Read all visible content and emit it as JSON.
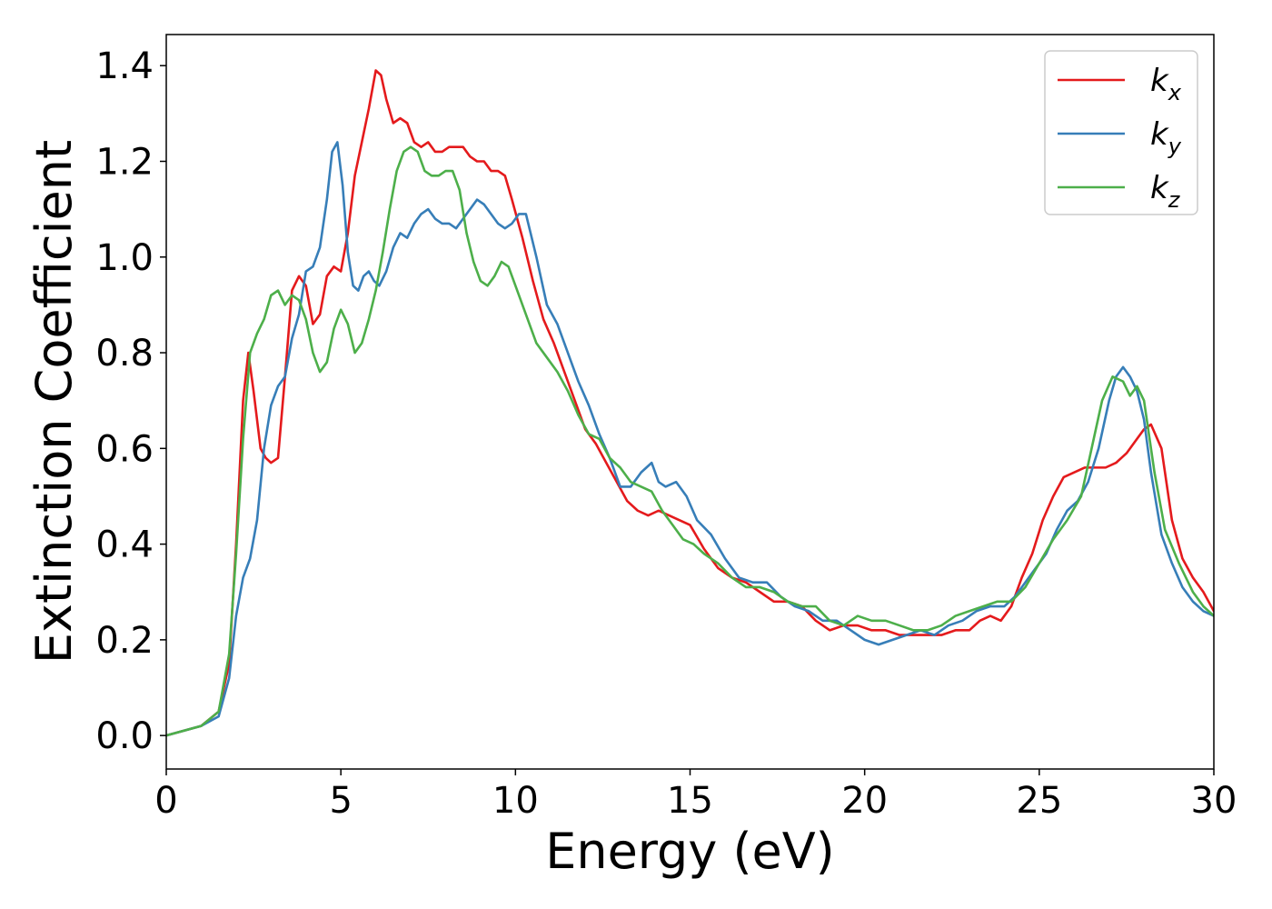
{
  "chart_data": {
    "type": "line",
    "title": "",
    "xlabel": "Energy (eV)",
    "ylabel": "Extinction Coefficient",
    "xlim": [
      0,
      30
    ],
    "ylim": [
      -0.07,
      1.465
    ],
    "xticks": [
      0,
      5,
      10,
      15,
      20,
      25,
      30
    ],
    "yticks": [
      0.0,
      0.2,
      0.4,
      0.6,
      0.8,
      1.0,
      1.2,
      1.4
    ],
    "ytick_labels": [
      "0.0",
      "0.2",
      "0.4",
      "0.6",
      "0.8",
      "1.0",
      "1.2",
      "1.4"
    ],
    "grid": false,
    "legend_position": "top-right",
    "series": [
      {
        "name": "k",
        "subscript": "x",
        "color": "#e41a1c",
        "x": [
          0,
          0.5,
          1,
          1.5,
          1.8,
          2.0,
          2.2,
          2.35,
          2.5,
          2.7,
          2.85,
          3.0,
          3.2,
          3.4,
          3.6,
          3.8,
          4.0,
          4.2,
          4.4,
          4.6,
          4.8,
          5.0,
          5.2,
          5.4,
          5.6,
          5.8,
          6.0,
          6.15,
          6.3,
          6.5,
          6.7,
          6.9,
          7.1,
          7.3,
          7.5,
          7.7,
          7.9,
          8.1,
          8.3,
          8.5,
          8.7,
          8.9,
          9.1,
          9.3,
          9.5,
          9.7,
          9.9,
          10.2,
          10.5,
          10.8,
          11.1,
          11.4,
          11.7,
          12.0,
          12.3,
          12.6,
          12.9,
          13.2,
          13.5,
          13.8,
          14.1,
          14.4,
          14.7,
          15.0,
          15.4,
          15.8,
          16.2,
          16.6,
          17.0,
          17.4,
          17.8,
          18.2,
          18.6,
          19.0,
          19.4,
          19.8,
          20.2,
          20.6,
          21.0,
          21.4,
          21.8,
          22.2,
          22.6,
          23.0,
          23.3,
          23.6,
          23.9,
          24.2,
          24.5,
          24.8,
          25.1,
          25.4,
          25.7,
          26.0,
          26.3,
          26.6,
          26.9,
          27.2,
          27.5,
          27.8,
          28.0,
          28.2,
          28.5,
          28.8,
          29.1,
          29.4,
          29.7,
          30.0
        ],
        "values": [
          0.0,
          0.01,
          0.02,
          0.05,
          0.15,
          0.4,
          0.7,
          0.8,
          0.72,
          0.6,
          0.58,
          0.57,
          0.58,
          0.75,
          0.93,
          0.96,
          0.94,
          0.86,
          0.88,
          0.96,
          0.98,
          0.97,
          1.05,
          1.17,
          1.24,
          1.31,
          1.39,
          1.38,
          1.33,
          1.28,
          1.29,
          1.28,
          1.24,
          1.23,
          1.24,
          1.22,
          1.22,
          1.23,
          1.23,
          1.23,
          1.21,
          1.2,
          1.2,
          1.18,
          1.18,
          1.17,
          1.12,
          1.04,
          0.95,
          0.87,
          0.82,
          0.76,
          0.7,
          0.64,
          0.61,
          0.57,
          0.53,
          0.49,
          0.47,
          0.46,
          0.47,
          0.46,
          0.45,
          0.44,
          0.39,
          0.35,
          0.33,
          0.32,
          0.3,
          0.28,
          0.28,
          0.27,
          0.24,
          0.22,
          0.23,
          0.23,
          0.22,
          0.22,
          0.21,
          0.21,
          0.21,
          0.21,
          0.22,
          0.22,
          0.24,
          0.25,
          0.24,
          0.27,
          0.33,
          0.38,
          0.45,
          0.5,
          0.54,
          0.55,
          0.56,
          0.56,
          0.56,
          0.57,
          0.59,
          0.62,
          0.64,
          0.65,
          0.6,
          0.45,
          0.37,
          0.33,
          0.3,
          0.26
        ]
      },
      {
        "name": "k",
        "subscript": "y",
        "color": "#377eb8",
        "x": [
          0,
          0.5,
          1,
          1.5,
          1.8,
          2.0,
          2.2,
          2.4,
          2.6,
          2.8,
          3.0,
          3.2,
          3.4,
          3.6,
          3.8,
          4.0,
          4.2,
          4.4,
          4.6,
          4.75,
          4.9,
          5.05,
          5.2,
          5.35,
          5.5,
          5.65,
          5.8,
          5.95,
          6.1,
          6.3,
          6.5,
          6.7,
          6.9,
          7.1,
          7.3,
          7.5,
          7.7,
          7.9,
          8.1,
          8.3,
          8.5,
          8.7,
          8.9,
          9.1,
          9.3,
          9.5,
          9.7,
          9.9,
          10.1,
          10.3,
          10.6,
          10.9,
          11.2,
          11.5,
          11.8,
          12.1,
          12.4,
          12.7,
          13.0,
          13.3,
          13.6,
          13.9,
          14.1,
          14.3,
          14.6,
          14.9,
          15.2,
          15.6,
          16.0,
          16.4,
          16.8,
          17.2,
          17.6,
          18.0,
          18.4,
          18.8,
          19.2,
          19.6,
          20.0,
          20.4,
          20.8,
          21.2,
          21.6,
          22.0,
          22.4,
          22.8,
          23.2,
          23.6,
          24.0,
          24.3,
          24.6,
          24.9,
          25.2,
          25.5,
          25.8,
          26.1,
          26.4,
          26.7,
          27.0,
          27.2,
          27.4,
          27.6,
          27.8,
          28.0,
          28.2,
          28.5,
          28.8,
          29.1,
          29.4,
          29.7,
          30.0
        ],
        "values": [
          0.0,
          0.01,
          0.02,
          0.04,
          0.12,
          0.25,
          0.33,
          0.37,
          0.45,
          0.6,
          0.69,
          0.73,
          0.75,
          0.83,
          0.88,
          0.97,
          0.98,
          1.02,
          1.12,
          1.22,
          1.24,
          1.15,
          1.01,
          0.94,
          0.93,
          0.96,
          0.97,
          0.95,
          0.94,
          0.97,
          1.02,
          1.05,
          1.04,
          1.07,
          1.09,
          1.1,
          1.08,
          1.07,
          1.07,
          1.06,
          1.08,
          1.1,
          1.12,
          1.11,
          1.09,
          1.07,
          1.06,
          1.07,
          1.09,
          1.09,
          1.0,
          0.9,
          0.86,
          0.8,
          0.74,
          0.69,
          0.63,
          0.58,
          0.52,
          0.52,
          0.55,
          0.57,
          0.53,
          0.52,
          0.53,
          0.5,
          0.45,
          0.42,
          0.37,
          0.33,
          0.32,
          0.32,
          0.29,
          0.27,
          0.26,
          0.24,
          0.24,
          0.22,
          0.2,
          0.19,
          0.2,
          0.21,
          0.22,
          0.21,
          0.23,
          0.24,
          0.26,
          0.27,
          0.27,
          0.29,
          0.32,
          0.35,
          0.38,
          0.43,
          0.47,
          0.49,
          0.53,
          0.6,
          0.7,
          0.75,
          0.77,
          0.75,
          0.72,
          0.66,
          0.55,
          0.42,
          0.36,
          0.31,
          0.28,
          0.26,
          0.25
        ]
      },
      {
        "name": "k",
        "subscript": "z",
        "color": "#4daf4a",
        "x": [
          0,
          0.5,
          1,
          1.5,
          1.8,
          2.0,
          2.2,
          2.4,
          2.6,
          2.8,
          3.0,
          3.2,
          3.4,
          3.6,
          3.8,
          4.0,
          4.2,
          4.4,
          4.6,
          4.8,
          5.0,
          5.2,
          5.4,
          5.6,
          5.8,
          6.0,
          6.2,
          6.4,
          6.6,
          6.8,
          7.0,
          7.2,
          7.4,
          7.6,
          7.8,
          8.0,
          8.2,
          8.4,
          8.6,
          8.8,
          9.0,
          9.2,
          9.4,
          9.6,
          9.8,
          10.0,
          10.3,
          10.6,
          10.9,
          11.2,
          11.5,
          11.8,
          12.1,
          12.4,
          12.7,
          13.0,
          13.3,
          13.6,
          13.9,
          14.2,
          14.5,
          14.8,
          15.1,
          15.4,
          15.8,
          16.2,
          16.6,
          17.0,
          17.4,
          17.8,
          18.2,
          18.6,
          19.0,
          19.4,
          19.8,
          20.2,
          20.6,
          21.0,
          21.4,
          21.8,
          22.2,
          22.6,
          23.0,
          23.4,
          23.8,
          24.2,
          24.6,
          25.0,
          25.4,
          25.8,
          26.2,
          26.5,
          26.8,
          27.1,
          27.4,
          27.6,
          27.8,
          28.0,
          28.3,
          28.6,
          29.0,
          29.4,
          29.7,
          30.0
        ],
        "values": [
          0.0,
          0.01,
          0.02,
          0.05,
          0.17,
          0.38,
          0.62,
          0.8,
          0.84,
          0.87,
          0.92,
          0.93,
          0.9,
          0.92,
          0.91,
          0.87,
          0.8,
          0.76,
          0.78,
          0.85,
          0.89,
          0.86,
          0.8,
          0.82,
          0.87,
          0.93,
          1.01,
          1.1,
          1.18,
          1.22,
          1.23,
          1.22,
          1.18,
          1.17,
          1.17,
          1.18,
          1.18,
          1.14,
          1.05,
          0.99,
          0.95,
          0.94,
          0.96,
          0.99,
          0.98,
          0.94,
          0.88,
          0.82,
          0.79,
          0.76,
          0.72,
          0.67,
          0.63,
          0.62,
          0.58,
          0.56,
          0.53,
          0.52,
          0.51,
          0.47,
          0.44,
          0.41,
          0.4,
          0.38,
          0.36,
          0.33,
          0.31,
          0.31,
          0.3,
          0.28,
          0.27,
          0.27,
          0.24,
          0.23,
          0.25,
          0.24,
          0.24,
          0.23,
          0.22,
          0.22,
          0.23,
          0.25,
          0.26,
          0.27,
          0.28,
          0.28,
          0.31,
          0.36,
          0.41,
          0.45,
          0.5,
          0.6,
          0.7,
          0.75,
          0.74,
          0.71,
          0.73,
          0.7,
          0.55,
          0.43,
          0.36,
          0.3,
          0.27,
          0.25
        ]
      }
    ]
  }
}
